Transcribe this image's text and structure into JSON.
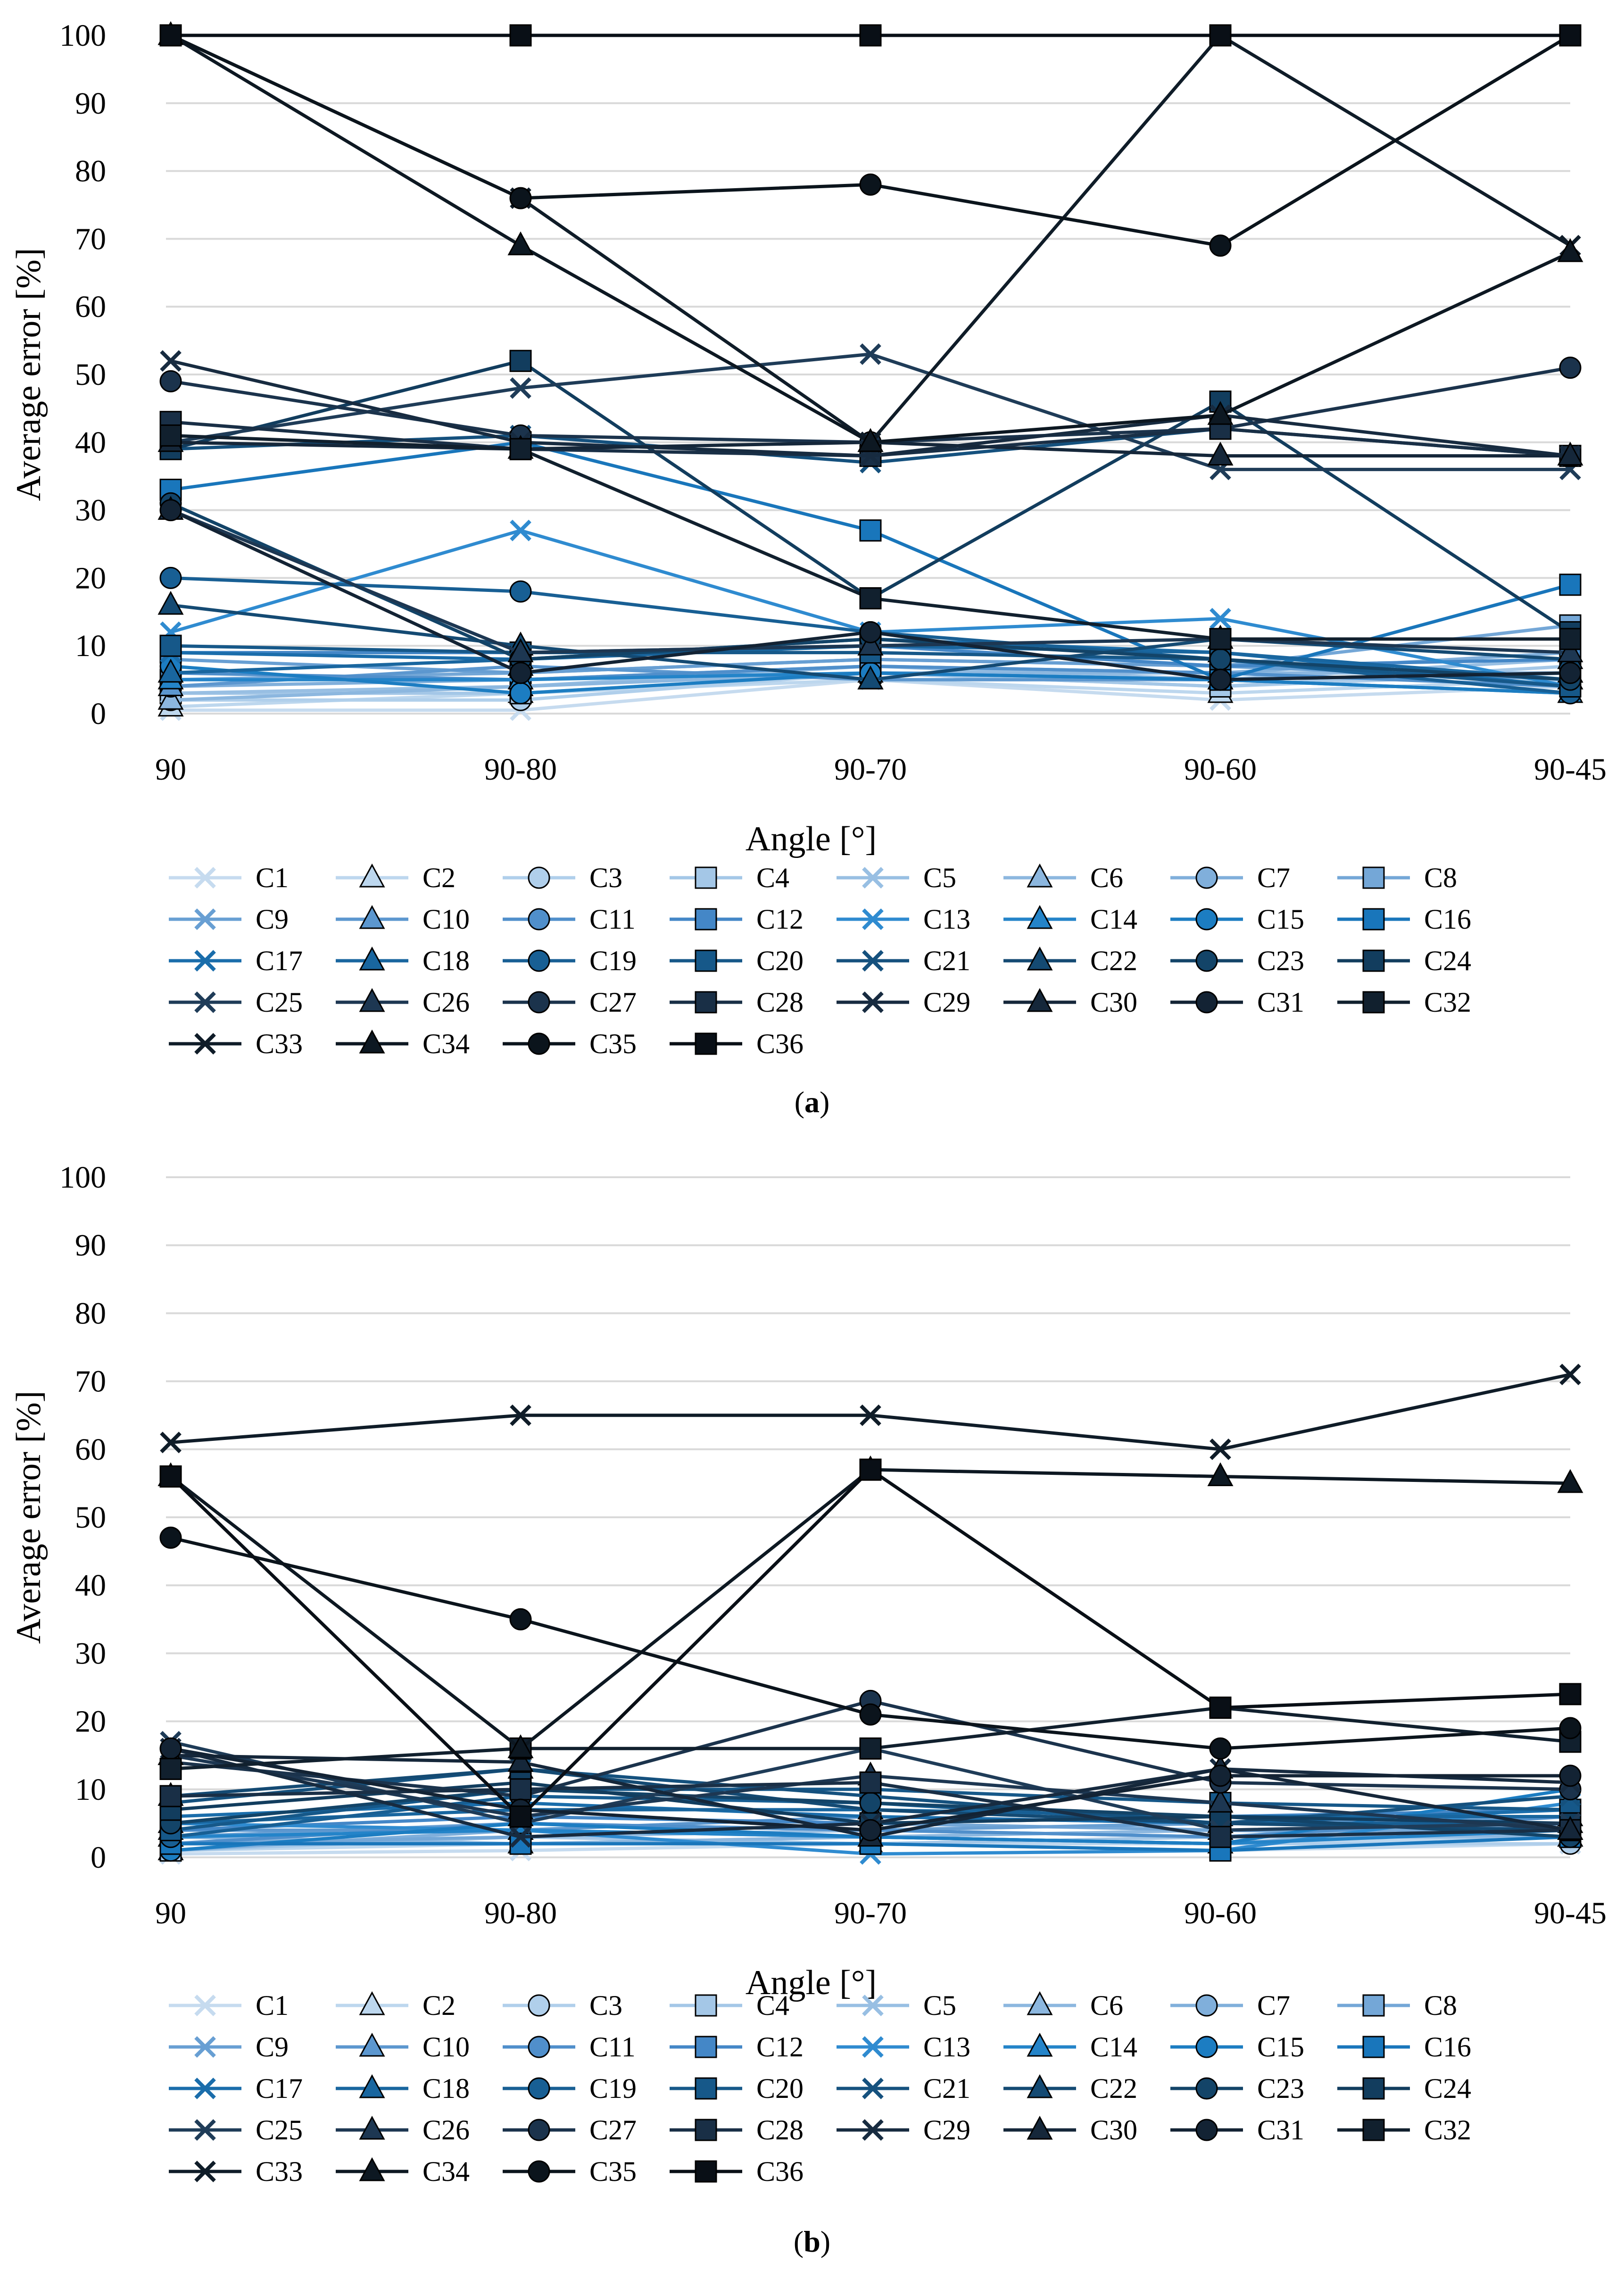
{
  "chart_data": [
    {
      "type": "line",
      "panel_label": "a",
      "xlabel": "Angle [°]",
      "ylabel": "Average error [%]",
      "ylim": [
        0,
        100
      ],
      "yticks": [
        "0",
        "10",
        "20",
        "30",
        "40",
        "50",
        "60",
        "70",
        "80",
        "90",
        "100"
      ],
      "categories": [
        "90",
        "90-80",
        "90-70",
        "90-60",
        "90-45"
      ],
      "grid": true,
      "legend_position": "bottom",
      "series": [
        {
          "name": "C1",
          "values": [
            0.5,
            0.5,
            5,
            2,
            4
          ]
        },
        {
          "name": "C2",
          "values": [
            1,
            3,
            5,
            3,
            5
          ]
        },
        {
          "name": "C3",
          "values": [
            2,
            2,
            6,
            4,
            6
          ]
        },
        {
          "name": "C4",
          "values": [
            3,
            3,
            6,
            4,
            7
          ]
        },
        {
          "name": "C5",
          "values": [
            3,
            4,
            7,
            5,
            8
          ]
        },
        {
          "name": "C6",
          "values": [
            2,
            4,
            6,
            6,
            6
          ]
        },
        {
          "name": "C7",
          "values": [
            4,
            5,
            7,
            6,
            9
          ]
        },
        {
          "name": "C8",
          "values": [
            5,
            6,
            8,
            7,
            13
          ]
        },
        {
          "name": "C9",
          "values": [
            8,
            6,
            8,
            7,
            5
          ]
        },
        {
          "name": "C10",
          "values": [
            4,
            7,
            5,
            5,
            6
          ]
        },
        {
          "name": "C11",
          "values": [
            6,
            5,
            7,
            6,
            4
          ]
        },
        {
          "name": "C12",
          "values": [
            9,
            9,
            10,
            7,
            8
          ]
        },
        {
          "name": "C13",
          "values": [
            12,
            27,
            12,
            14,
            4
          ]
        },
        {
          "name": "C14",
          "values": [
            5,
            5,
            6,
            5,
            3
          ]
        },
        {
          "name": "C15",
          "values": [
            7,
            3,
            6,
            5,
            3
          ]
        },
        {
          "name": "C16",
          "values": [
            33,
            40,
            27,
            5,
            19
          ]
        },
        {
          "name": "C17",
          "values": [
            9,
            8,
            11,
            9,
            4
          ]
        },
        {
          "name": "C18",
          "values": [
            6,
            8,
            10,
            9,
            5
          ]
        },
        {
          "name": "C19",
          "values": [
            20,
            18,
            12,
            8,
            3
          ]
        },
        {
          "name": "C20",
          "values": [
            10,
            9,
            9,
            8,
            4
          ]
        },
        {
          "name": "C21",
          "values": [
            39,
            41,
            37,
            42,
            38
          ]
        },
        {
          "name": "C22",
          "values": [
            16,
            10,
            5,
            11,
            8
          ]
        },
        {
          "name": "C23",
          "values": [
            31,
            8,
            11,
            8,
            5
          ]
        },
        {
          "name": "C24",
          "values": [
            39,
            52,
            17,
            46,
            12
          ]
        },
        {
          "name": "C25",
          "values": [
            40,
            48,
            53,
            36,
            36
          ]
        },
        {
          "name": "C26",
          "values": [
            30,
            9,
            10,
            11,
            9
          ]
        },
        {
          "name": "C27",
          "values": [
            49,
            41,
            40,
            42,
            51
          ]
        },
        {
          "name": "C28",
          "values": [
            43,
            39,
            38,
            42,
            38
          ]
        },
        {
          "name": "C29",
          "values": [
            52,
            40,
            38,
            44,
            38
          ]
        },
        {
          "name": "C30",
          "values": [
            40,
            39,
            40,
            38,
            38
          ]
        },
        {
          "name": "C31",
          "values": [
            30,
            6,
            12,
            5,
            6
          ]
        },
        {
          "name": "C32",
          "values": [
            41,
            39,
            17,
            11,
            11
          ]
        },
        {
          "name": "C33",
          "values": [
            100,
            76,
            40,
            100,
            69
          ]
        },
        {
          "name": "C34",
          "values": [
            100,
            69,
            40,
            44,
            68
          ]
        },
        {
          "name": "C35",
          "values": [
            100,
            76,
            78,
            69,
            100
          ]
        },
        {
          "name": "C36",
          "values": [
            100,
            100,
            100,
            100,
            100
          ]
        }
      ]
    },
    {
      "type": "line",
      "panel_label": "b",
      "xlabel": "Angle [°]",
      "ylabel": "Average error [%]",
      "ylim": [
        0,
        100
      ],
      "yticks": [
        "0",
        "10",
        "20",
        "30",
        "40",
        "50",
        "60",
        "70",
        "80",
        "90",
        "100"
      ],
      "categories": [
        "90",
        "90-80",
        "90-70",
        "90-60",
        "90-45"
      ],
      "grid": true,
      "legend_position": "bottom",
      "series": [
        {
          "name": "C1",
          "values": [
            0.5,
            1,
            2,
            1,
            2
          ]
        },
        {
          "name": "C2",
          "values": [
            1,
            2,
            2,
            2,
            3
          ]
        },
        {
          "name": "C3",
          "values": [
            2,
            2,
            3,
            2,
            2
          ]
        },
        {
          "name": "C4",
          "values": [
            1,
            3,
            2,
            3,
            4
          ]
        },
        {
          "name": "C5",
          "values": [
            2,
            3,
            4,
            3,
            3
          ]
        },
        {
          "name": "C6",
          "values": [
            3,
            2,
            3,
            4,
            3
          ]
        },
        {
          "name": "C7",
          "values": [
            1,
            4,
            3,
            2,
            5
          ]
        },
        {
          "name": "C8",
          "values": [
            2,
            3,
            5,
            4,
            4
          ]
        },
        {
          "name": "C9",
          "values": [
            3,
            5,
            4,
            5,
            6
          ]
        },
        {
          "name": "C10",
          "values": [
            4,
            4,
            6,
            5,
            5
          ]
        },
        {
          "name": "C11",
          "values": [
            2,
            5,
            4,
            3,
            6
          ]
        },
        {
          "name": "C12",
          "values": [
            4,
            6,
            5,
            6,
            7
          ]
        },
        {
          "name": "C13",
          "values": [
            5,
            4,
            0.5,
            1,
            8
          ]
        },
        {
          "name": "C14",
          "values": [
            3,
            4,
            3,
            2,
            4
          ]
        },
        {
          "name": "C15",
          "values": [
            1,
            5,
            3,
            2,
            10
          ]
        },
        {
          "name": "C16",
          "values": [
            2,
            2,
            2,
            1,
            3
          ]
        },
        {
          "name": "C17",
          "values": [
            6,
            8,
            6,
            5,
            7
          ]
        },
        {
          "name": "C18",
          "values": [
            5,
            7,
            7,
            6,
            6
          ]
        },
        {
          "name": "C19",
          "values": [
            3,
            9,
            8,
            5,
            5
          ]
        },
        {
          "name": "C20",
          "values": [
            4,
            10,
            10,
            8,
            7
          ]
        },
        {
          "name": "C21",
          "values": [
            8,
            13,
            9,
            5,
            9
          ]
        },
        {
          "name": "C22",
          "values": [
            9,
            13,
            7,
            5,
            4
          ]
        },
        {
          "name": "C23",
          "values": [
            5,
            10,
            8,
            6,
            3
          ]
        },
        {
          "name": "C24",
          "values": [
            7,
            11,
            5,
            6,
            5
          ]
        },
        {
          "name": "C25",
          "values": [
            17,
            5,
            16,
            4,
            5
          ]
        },
        {
          "name": "C26",
          "values": [
            15,
            6,
            12,
            8,
            4
          ]
        },
        {
          "name": "C27",
          "values": [
            14,
            9,
            23,
            11,
            10
          ]
        },
        {
          "name": "C28",
          "values": [
            9,
            10,
            11,
            3,
            4
          ]
        },
        {
          "name": "C29",
          "values": [
            16,
            3,
            5,
            13,
            11
          ]
        },
        {
          "name": "C30",
          "values": [
            15,
            14,
            3,
            13,
            4
          ]
        },
        {
          "name": "C31",
          "values": [
            16,
            7,
            4,
            12,
            12
          ]
        },
        {
          "name": "C32",
          "values": [
            13,
            16,
            16,
            22,
            17
          ]
        },
        {
          "name": "C33",
          "values": [
            61,
            65,
            65,
            60,
            71
          ]
        },
        {
          "name": "C34",
          "values": [
            56,
            16,
            57,
            56,
            55
          ]
        },
        {
          "name": "C35",
          "values": [
            47,
            35,
            21,
            16,
            19
          ]
        },
        {
          "name": "C36",
          "values": [
            56,
            6,
            57,
            22,
            24
          ]
        }
      ]
    }
  ]
}
